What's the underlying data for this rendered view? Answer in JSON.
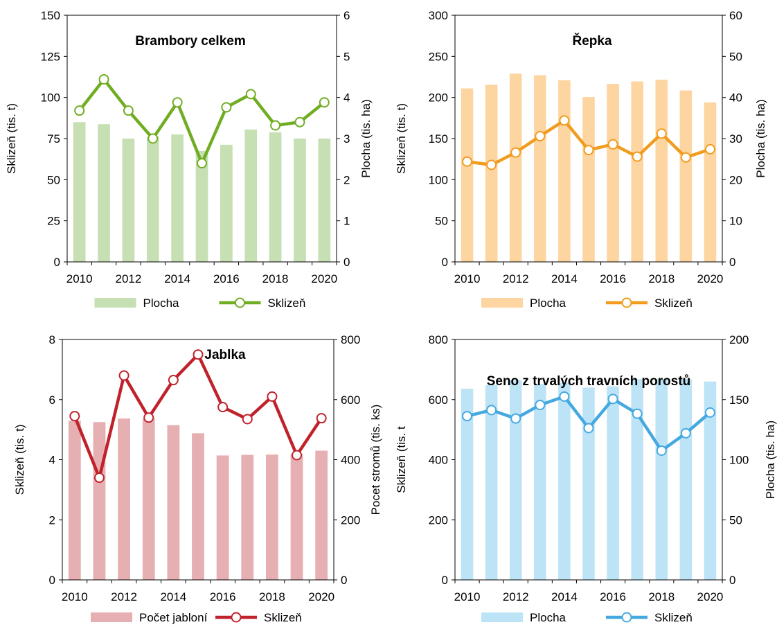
{
  "chart_data": [
    {
      "type": "bar+line",
      "title": "Brambory celkem",
      "x": [
        2010,
        2011,
        2012,
        2013,
        2014,
        2015,
        2016,
        2017,
        2018,
        2019,
        2020
      ],
      "x_ticks": [
        "2010",
        "2012",
        "2014",
        "2016",
        "2018",
        "2020"
      ],
      "ylabel": "Sklizeň (tis. t)",
      "y2label": "Plocha (tis. ha)",
      "ylim": [
        0,
        150
      ],
      "yticks": [
        "0",
        "25",
        "50",
        "75",
        "100",
        "125",
        "150"
      ],
      "y2lim": [
        0,
        6
      ],
      "y2ticks": [
        "0",
        "1",
        "2",
        "3",
        "4",
        "5",
        "6"
      ],
      "bar_series": {
        "name": "Plocha",
        "axis": "right",
        "color": "#c6e0b4",
        "values": [
          3.4,
          3.35,
          3.0,
          3.05,
          3.1,
          2.7,
          2.85,
          3.22,
          3.15,
          3.0,
          3.0
        ]
      },
      "line_series": {
        "name": "Sklizeň",
        "axis": "left",
        "color": "#70ad22",
        "values": [
          92,
          111,
          92,
          75,
          97,
          60,
          94,
          102,
          83,
          85,
          97
        ]
      },
      "grid": false,
      "legend": "bottom"
    },
    {
      "type": "bar+line",
      "title": "Řepka",
      "x": [
        2010,
        2011,
        2012,
        2013,
        2014,
        2015,
        2016,
        2017,
        2018,
        2019,
        2020
      ],
      "x_ticks": [
        "2010",
        "2012",
        "2014",
        "2016",
        "2018",
        "2020"
      ],
      "ylabel": "Sklizeň (tis. t)",
      "y2label": "Plocha (tis. ha)",
      "ylim": [
        0,
        300
      ],
      "yticks": [
        "0",
        "50",
        "100",
        "150",
        "200",
        "250",
        "300"
      ],
      "y2lim": [
        0,
        60
      ],
      "y2ticks": [
        "0",
        "10",
        "20",
        "30",
        "40",
        "50",
        "60"
      ],
      "bar_series": {
        "name": "Plocha",
        "axis": "right",
        "color": "#fcd5a0",
        "values": [
          42.2,
          43.1,
          45.8,
          45.4,
          44.2,
          40.1,
          43.3,
          43.9,
          44.3,
          41.7,
          38.8
        ]
      },
      "line_series": {
        "name": "Sklizeň",
        "axis": "left",
        "color": "#f19c1f",
        "values": [
          122,
          118,
          133,
          153,
          172,
          136,
          143,
          128,
          156,
          127,
          137
        ]
      },
      "grid": false,
      "legend": "bottom"
    },
    {
      "type": "bar+line",
      "title": "Jablka",
      "x": [
        2010,
        2011,
        2012,
        2013,
        2014,
        2015,
        2016,
        2017,
        2018,
        2019,
        2020
      ],
      "x_ticks": [
        "2010",
        "2012",
        "2014",
        "2016",
        "2018",
        "2020"
      ],
      "ylabel": "Sklizeň (tis. t)",
      "y2label": "Pocet stromů (tis. ks)",
      "ylim": [
        0,
        8
      ],
      "yticks": [
        "0",
        "2",
        "4",
        "6",
        "8"
      ],
      "y2lim": [
        0,
        800
      ],
      "y2ticks": [
        "0",
        "200",
        "400",
        "600",
        "800"
      ],
      "bar_series": {
        "name": "Počet jabloní",
        "axis": "right",
        "color": "#e6b0b2",
        "values": [
          530,
          525,
          537,
          537,
          515,
          488,
          414,
          416,
          417,
          419,
          430
        ]
      },
      "line_series": {
        "name": "Sklizeň",
        "axis": "left",
        "color": "#c0222b",
        "values": [
          5.45,
          3.4,
          6.8,
          5.4,
          6.65,
          7.5,
          5.75,
          5.35,
          6.1,
          4.15,
          5.38
        ]
      },
      "grid": false,
      "legend": "bottom"
    },
    {
      "type": "bar+line",
      "title": "Seno z trvalých travních porostů",
      "x": [
        2010,
        2011,
        2012,
        2013,
        2014,
        2015,
        2016,
        2017,
        2018,
        2019,
        2020
      ],
      "x_ticks": [
        "2010",
        "2012",
        "2014",
        "2016",
        "2018",
        "2020"
      ],
      "ylabel": "Sklizeň (tis. t",
      "y2label": "Plocha (tis. ha)",
      "ylim": [
        0,
        800
      ],
      "yticks": [
        "0",
        "200",
        "400",
        "600",
        "800"
      ],
      "y2lim": [
        0,
        200
      ],
      "y2ticks": [
        "0",
        "50",
        "100",
        "150",
        "200"
      ],
      "bar_series": {
        "name": "Plocha",
        "axis": "right",
        "color": "#bde3f6",
        "values": [
          159,
          162,
          166,
          163,
          164,
          160,
          161,
          167,
          167,
          167,
          165
        ]
      },
      "line_series": {
        "name": "Sklizeň",
        "axis": "left",
        "color": "#45a9e0",
        "values": [
          545,
          565,
          537,
          582,
          610,
          505,
          602,
          553,
          430,
          488,
          557
        ]
      },
      "grid": false,
      "legend": "bottom"
    }
  ]
}
